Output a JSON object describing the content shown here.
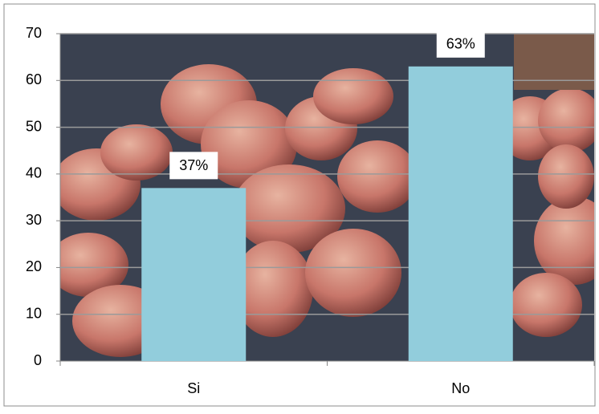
{
  "chart_data": {
    "type": "bar",
    "categories": [
      "Si",
      "No"
    ],
    "values": [
      37,
      63
    ],
    "value_labels": [
      "37%",
      "63%"
    ],
    "color": "#92cddc",
    "ylim": [
      0,
      70
    ],
    "yticks": [
      0,
      10,
      20,
      30,
      40,
      50,
      60,
      70
    ],
    "grid": true
  }
}
